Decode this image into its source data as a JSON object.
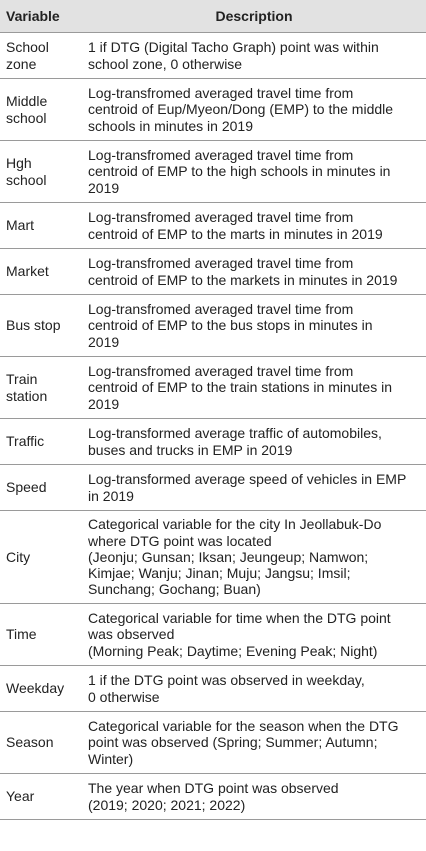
{
  "header": {
    "variable": "Variable",
    "description": "Description"
  },
  "rows": [
    {
      "variable": [
        "School",
        "zone"
      ],
      "description": [
        "1 if DTG (Digital Tacho Graph) point was within",
        "school zone, 0 otherwise"
      ],
      "h": 46
    },
    {
      "variable": [
        "Middle",
        "school"
      ],
      "description": [
        "Log-transfromed averaged travel time from",
        "centroid of Eup/Myeon/Dong (EMP) to the middle",
        "schools in minutes in 2019"
      ],
      "h": 62
    },
    {
      "variable": [
        "Hgh",
        "school"
      ],
      "description": [
        "Log-transfromed averaged travel time from",
        "centroid of EMP to the high schools in minutes in",
        "2019"
      ],
      "h": 62
    },
    {
      "variable": [
        "Mart"
      ],
      "description": [
        "Log-transfromed averaged travel time from",
        "centroid of EMP to the marts in minutes in 2019"
      ],
      "h": 46
    },
    {
      "variable": [
        "Market"
      ],
      "description": [
        "Log-transfromed averaged travel time from",
        "centroid of EMP to the markets in minutes in 2019"
      ],
      "h": 46
    },
    {
      "variable": [
        "Bus stop"
      ],
      "description": [
        "Log-transfromed averaged travel time from",
        "centroid of EMP to the bus stops in minutes in",
        "2019"
      ],
      "h": 62
    },
    {
      "variable": [
        "Train",
        "station"
      ],
      "description": [
        "Log-transfromed averaged travel time from",
        "centroid of EMP to the train stations in minutes in",
        "2019"
      ],
      "h": 62
    },
    {
      "variable": [
        "Traffic"
      ],
      "description": [
        "Log-transformed average traffic of automobiles,",
        "buses and trucks in EMP in 2019"
      ],
      "h": 46
    },
    {
      "variable": [
        "Speed"
      ],
      "description": [
        "Log-transformed average speed of vehicles in EMP",
        "in 2019"
      ],
      "h": 46
    },
    {
      "variable": [
        "City"
      ],
      "description": [
        "Categorical variable for the city In Jeollabuk-Do",
        "where DTG point was located",
        "(Jeonju; Gunsan; Iksan; Jeungeup; Namwon;",
        "Kimjae; Wanju; Jinan; Muju; Jangsu; Imsil;",
        "Sunchang; Gochang; Buan)"
      ],
      "h": 93
    },
    {
      "variable": [
        "Time"
      ],
      "description": [
        "Categorical variable for time when the DTG point",
        "was observed",
        "(Morning Peak; Daytime; Evening Peak; Night)"
      ],
      "h": 62
    },
    {
      "variable": [
        "Weekday"
      ],
      "description": [
        "1 if the DTG point was observed in weekday,",
        "0 otherwise"
      ],
      "h": 46
    },
    {
      "variable": [
        "Season"
      ],
      "description": [
        "Categorical variable for the season when the DTG",
        "point was observed (Spring; Summer; Autumn;",
        "Winter)"
      ],
      "h": 62
    },
    {
      "variable": [
        "Year"
      ],
      "description": [
        "The year when DTG point was observed",
        "(2019; 2020; 2021; 2022)"
      ],
      "h": 46
    }
  ]
}
